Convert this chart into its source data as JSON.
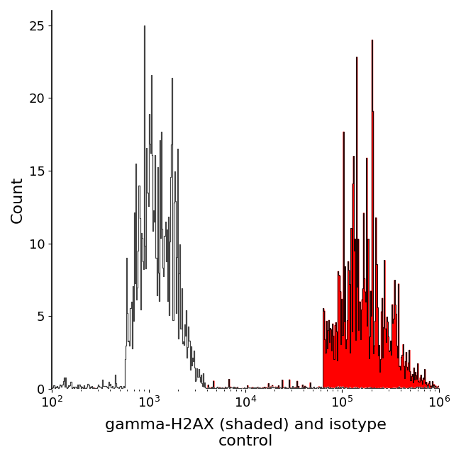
{
  "ylabel": "Count",
  "xlabel": "gamma-H2AX (shaded) and isotype\ncontrol",
  "xlim_log": [
    2,
    6
  ],
  "ylim": [
    0,
    26
  ],
  "yticks": [
    0,
    5,
    10,
    15,
    20,
    25
  ],
  "background_color": "#ffffff",
  "isotype_color": "#444444",
  "antibody_fill_color": "#ff0000",
  "antibody_line_color": "#000000",
  "isotype_peak_log": 3.08,
  "isotype_peak_count": 25,
  "antibody_peak_log": 5.12,
  "antibody_peak_count": 24,
  "noise_seed": 7,
  "n_bins": 500
}
